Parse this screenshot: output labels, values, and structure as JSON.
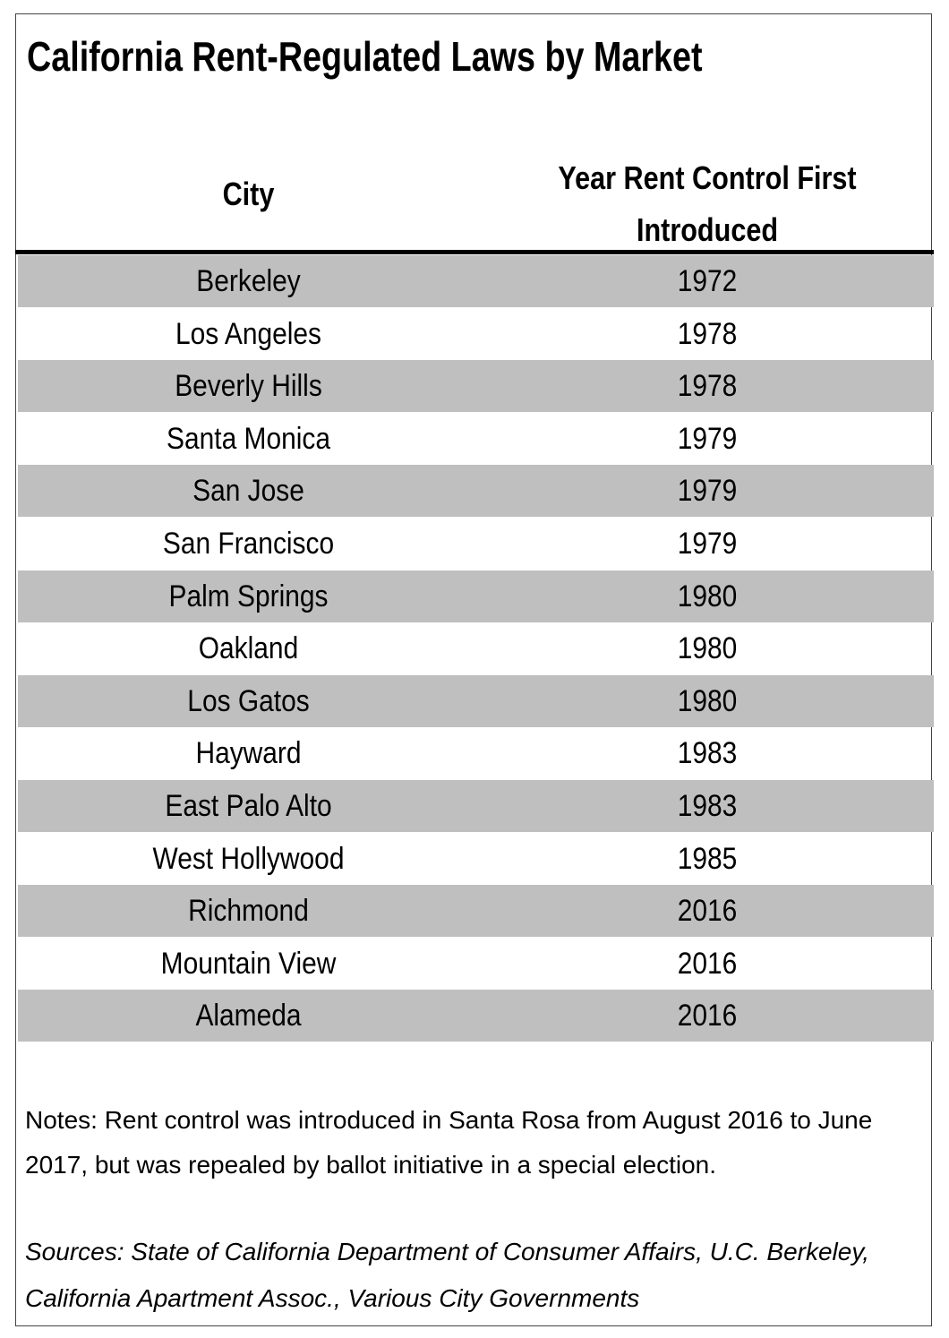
{
  "title": "California Rent-Regulated Laws by Market",
  "table": {
    "header": [
      "City",
      "Year Rent Control First Introduced"
    ],
    "rows": [
      [
        "Berkeley",
        "1972"
      ],
      [
        "Los Angeles",
        "1978"
      ],
      [
        "Beverly Hills",
        "1978"
      ],
      [
        "Santa Monica",
        "1979"
      ],
      [
        "San Jose",
        "1979"
      ],
      [
        "San Francisco",
        "1979"
      ],
      [
        "Palm Springs",
        "1980"
      ],
      [
        "Oakland",
        "1980"
      ],
      [
        "Los Gatos",
        "1980"
      ],
      [
        "Hayward",
        "1983"
      ],
      [
        "East Palo Alto",
        "1983"
      ],
      [
        "West Hollywood",
        "1985"
      ],
      [
        "Richmond",
        "2016"
      ],
      [
        "Mountain View",
        "2016"
      ],
      [
        "Alameda",
        "2016"
      ]
    ]
  },
  "notes": "Notes: Rent control was introduced in Santa Rosa from August 2016 to June 2017, but was repealed by ballot initiative in a special election.",
  "sources": "Sources: State of California Department of Consumer Affairs, U.C. Berkeley, California Apartment Assoc., Various City Governments"
}
